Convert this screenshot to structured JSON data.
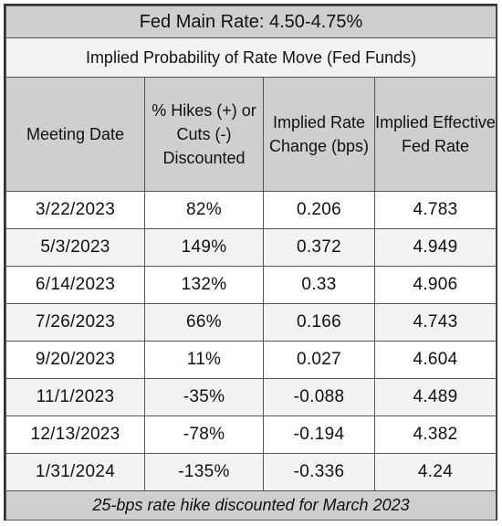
{
  "title": "Fed Main Rate: 4.50-4.75%",
  "subtitle": "Implied Probability of Rate Move (Fed Funds)",
  "columns": [
    "Meeting Date",
    "% Hikes (+) or Cuts (-) Discounted",
    "Implied Rate Change (bps)",
    "Implied Effective Fed Rate"
  ],
  "rows": [
    [
      "3/22/2023",
      "82%",
      "0.206",
      "4.783"
    ],
    [
      "5/3/2023",
      "149%",
      "0.372",
      "4.949"
    ],
    [
      "6/14/2023",
      "132%",
      "0.33",
      "4.906"
    ],
    [
      "7/26/2023",
      "66%",
      "0.166",
      "4.743"
    ],
    [
      "9/20/2023",
      "11%",
      "0.027",
      "4.604"
    ],
    [
      "11/1/2023",
      "-35%",
      "-0.088",
      "4.489"
    ],
    [
      "12/13/2023",
      "-78%",
      "-0.194",
      "4.382"
    ],
    [
      "1/31/2024",
      "-135%",
      "-0.336",
      "4.24"
    ]
  ],
  "footer": "25-bps rate hike discounted for March 2023",
  "chart_data": {
    "type": "table",
    "title": "Fed Main Rate: 4.50-4.75%",
    "subtitle": "Implied Probability of Rate Move (Fed Funds)",
    "columns": [
      "Meeting Date",
      "% Hikes (+) or Cuts (-) Discounted",
      "Implied Rate Change (bps)",
      "Implied Effective Fed Rate"
    ],
    "rows": [
      [
        "3/22/2023",
        82,
        0.206,
        4.783
      ],
      [
        "5/3/2023",
        149,
        0.372,
        4.949
      ],
      [
        "6/14/2023",
        132,
        0.33,
        4.906
      ],
      [
        "7/26/2023",
        66,
        0.166,
        4.743
      ],
      [
        "9/20/2023",
        11,
        0.027,
        4.604
      ],
      [
        "11/1/2023",
        -35,
        -0.088,
        4.489
      ],
      [
        "12/13/2023",
        -78,
        -0.194,
        4.382
      ],
      [
        "1/31/2024",
        -135,
        -0.336,
        4.24
      ]
    ]
  },
  "colors": {
    "header_bg": "#cfcfcf",
    "band_light": "#f3f3f3",
    "band_white": "#ffffff",
    "border": "#333333"
  }
}
